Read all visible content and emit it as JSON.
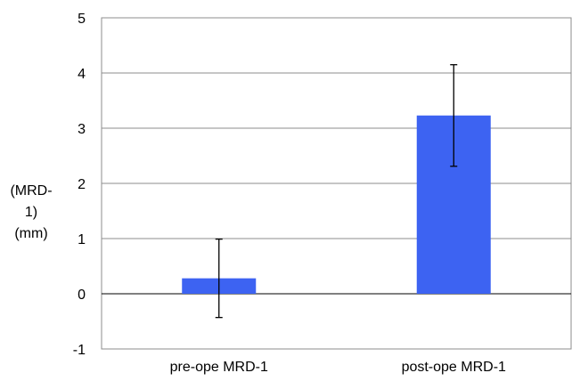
{
  "chart_data": {
    "type": "bar",
    "categories": [
      "pre-ope MRD-1",
      "post-ope MRD-1"
    ],
    "series": [
      {
        "values": [
          0.28,
          3.23
        ],
        "error": [
          0.71,
          0.92
        ],
        "color": "#3d63f2"
      }
    ],
    "title": "",
    "xlabel": "",
    "ylabel_lines": [
      "(MRD-",
      "1)",
      "(mm)"
    ],
    "ylim": [
      -1,
      5
    ],
    "yticks": [
      -1,
      0,
      1,
      2,
      3,
      4,
      5
    ],
    "grid": true,
    "legend": "none"
  }
}
